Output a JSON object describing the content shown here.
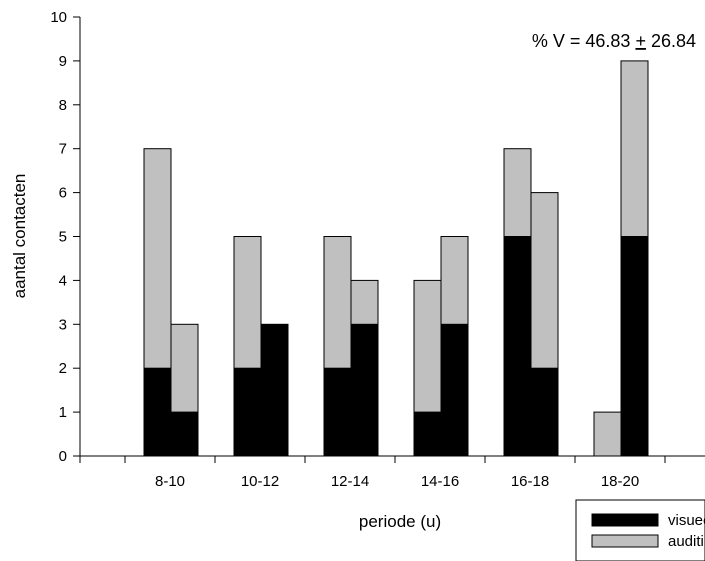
{
  "chart_data": {
    "type": "bar",
    "stacked": true,
    "xlabel": "periode (u)",
    "ylabel": "aantal contacten",
    "ylim": [
      0,
      10
    ],
    "yticks": [
      0,
      1,
      2,
      3,
      4,
      5,
      6,
      7,
      8,
      9,
      10
    ],
    "categories": [
      "8-10",
      "10-12",
      "12-14",
      "14-16",
      "16-18",
      "18-20"
    ],
    "bars_per_category": 2,
    "series": [
      {
        "name": "visueel",
        "color": "#000000",
        "values": [
          [
            2,
            1
          ],
          [
            2,
            3
          ],
          [
            2,
            3
          ],
          [
            1,
            3
          ],
          [
            5,
            2
          ],
          [
            0,
            5
          ]
        ]
      },
      {
        "name": "auditief",
        "color": "#c0c0c0",
        "values": [
          [
            5,
            2
          ],
          [
            3,
            0
          ],
          [
            3,
            1
          ],
          [
            3,
            2
          ],
          [
            2,
            4
          ],
          [
            1,
            4
          ]
        ]
      }
    ],
    "annotation": {
      "prefix": "% V = 46.83 ",
      "pm": "+",
      "suffix": " 26.84"
    },
    "legend_position": "bottom-right"
  }
}
